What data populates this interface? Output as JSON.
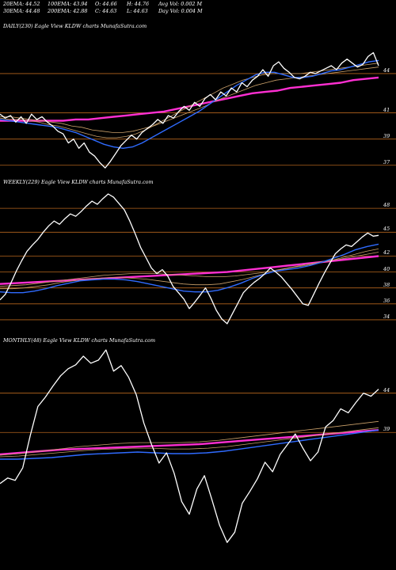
{
  "header": {
    "row1": [
      {
        "key": "ema20",
        "text": "20EMA: 44.52"
      },
      {
        "key": "ema100",
        "text": "100EMA: 43.94"
      },
      {
        "key": "open",
        "text": "O: 44.66"
      },
      {
        "key": "high",
        "text": "H: 44.76"
      },
      {
        "key": "avgvol",
        "text": "Avg Vol: 0.002  M"
      }
    ],
    "row2": [
      {
        "key": "ema30",
        "text": "30EMA: 44.48"
      },
      {
        "key": "ema200",
        "text": "200EMA: 42.88"
      },
      {
        "key": "close",
        "text": "C: 44.63"
      },
      {
        "key": "low",
        "text": "L: 44.63"
      },
      {
        "key": "dayvol",
        "text": "Day Vol: 0.004  M"
      }
    ]
  },
  "colors": {
    "background": "#000000",
    "price": "#ffffff",
    "gridline": "#b5651d",
    "ema_fast": "#2f6bff",
    "ema_slow": "#ff2fd2",
    "ema_mid": "#caa06a"
  },
  "chart_data": [
    {
      "type": "line",
      "title": "DAILY(230) Eagle  View  KLDW charts MunafaSutra.com",
      "yticks": [
        44,
        41,
        39,
        37
      ],
      "ylim": [
        36.2,
        47.2
      ],
      "price": [
        40.9,
        40.6,
        40.8,
        40.3,
        40.7,
        40.2,
        40.9,
        40.5,
        40.7,
        40.3,
        40.0,
        39.6,
        39.4,
        38.7,
        39.0,
        38.3,
        38.7,
        38.0,
        37.7,
        37.2,
        36.8,
        37.3,
        37.9,
        38.5,
        38.9,
        39.3,
        39.0,
        39.5,
        39.8,
        40.1,
        40.5,
        40.2,
        40.8,
        40.6,
        41.1,
        41.5,
        41.2,
        41.8,
        41.5,
        42.1,
        42.4,
        42.0,
        42.6,
        42.3,
        42.9,
        42.6,
        43.3,
        43.0,
        43.5,
        43.8,
        44.3,
        43.8,
        44.6,
        44.9,
        44.4,
        44.1,
        43.7,
        43.6,
        43.8,
        44.1,
        44.0,
        44.2,
        44.4,
        44.6,
        44.3,
        44.8,
        45.1,
        44.8,
        44.5,
        44.7,
        45.3,
        45.6,
        44.6
      ],
      "ema_fast": [
        40.5,
        40.4,
        40.3,
        40.2,
        40.1,
        40.0,
        39.9,
        39.7,
        39.5,
        39.2,
        38.9,
        38.6,
        38.4,
        38.3,
        38.4,
        38.7,
        39.1,
        39.5,
        39.9,
        40.3,
        40.7,
        41.1,
        41.6,
        42.1,
        42.6,
        43.1,
        43.5,
        43.9,
        44.1,
        44.1,
        43.9,
        43.7,
        43.7,
        43.8,
        44.0,
        44.2,
        44.3,
        44.5,
        44.7,
        44.9,
        45.0
      ],
      "ema_mid1": [
        40.6,
        40.5,
        40.5,
        40.4,
        40.3,
        40.1,
        40.0,
        39.8,
        39.6,
        39.4,
        39.2,
        39.1,
        39.1,
        39.2,
        39.4,
        39.7,
        40.1,
        40.5,
        40.9,
        41.3,
        41.7,
        42.1,
        42.5,
        42.9,
        43.2,
        43.5,
        43.7,
        43.9,
        44.0,
        44.0,
        44.0,
        44.0,
        44.1,
        44.2,
        44.3,
        44.4,
        44.5,
        44.6,
        44.7,
        44.8
      ],
      "ema_mid2": [
        40.7,
        40.7,
        40.6,
        40.5,
        40.4,
        40.3,
        40.2,
        40.0,
        39.9,
        39.7,
        39.6,
        39.5,
        39.5,
        39.6,
        39.8,
        40.0,
        40.3,
        40.6,
        40.9,
        41.2,
        41.5,
        41.9,
        42.2,
        42.5,
        42.8,
        43.1,
        43.3,
        43.5,
        43.6,
        43.7,
        43.8,
        43.9,
        44.0,
        44.1,
        44.2,
        44.3,
        44.4,
        44.5
      ],
      "ema_slow": [
        40.4,
        40.4,
        40.4,
        40.4,
        40.4,
        40.4,
        40.5,
        40.5,
        40.6,
        40.7,
        40.8,
        40.9,
        41.0,
        41.1,
        41.3,
        41.5,
        41.7,
        41.9,
        42.1,
        42.3,
        42.5,
        42.6,
        42.7,
        42.9,
        43.0,
        43.1,
        43.2,
        43.3,
        43.5,
        43.6,
        43.7
      ]
    },
    {
      "type": "line",
      "title": "WEEKLY(229) Eagle  View  KLDW charts MunafaSutra.com",
      "yticks": [
        48,
        45,
        42,
        40,
        38,
        36,
        34
      ],
      "ylim": [
        32.6,
        50.6
      ],
      "price": [
        36.5,
        37.2,
        38.6,
        40.1,
        41.4,
        42.6,
        43.4,
        44.1,
        45.0,
        45.8,
        46.4,
        46.0,
        46.7,
        47.3,
        47.0,
        47.6,
        48.3,
        48.9,
        48.5,
        49.2,
        49.8,
        49.4,
        48.6,
        47.8,
        46.4,
        44.8,
        43.1,
        41.8,
        40.5,
        39.8,
        40.3,
        39.5,
        38.2,
        37.4,
        36.6,
        35.4,
        36.2,
        37.1,
        38.0,
        36.7,
        35.2,
        34.1,
        33.5,
        34.8,
        36.1,
        37.4,
        38.1,
        38.7,
        39.2,
        39.8,
        40.5,
        40.0,
        39.4,
        38.6,
        37.8,
        36.9,
        36.0,
        35.8,
        37.2,
        38.6,
        39.9,
        41.1,
        42.3,
        42.9,
        43.4,
        43.2,
        43.8,
        44.4,
        44.9,
        44.5,
        44.6
      ],
      "ema_fast": [
        37.5,
        37.4,
        37.4,
        37.6,
        37.9,
        38.3,
        38.6,
        38.9,
        39.0,
        39.1,
        39.1,
        39.0,
        38.8,
        38.5,
        38.2,
        37.9,
        37.6,
        37.5,
        37.5,
        37.7,
        38.1,
        38.6,
        39.2,
        39.7,
        40.1,
        40.3,
        40.5,
        40.8,
        41.2,
        41.7,
        42.2,
        42.8,
        43.2,
        43.5
      ],
      "ema_mid1": [
        37.9,
        37.9,
        38.0,
        38.2,
        38.4,
        38.7,
        38.9,
        39.1,
        39.2,
        39.3,
        39.3,
        39.2,
        39.1,
        38.9,
        38.7,
        38.5,
        38.4,
        38.4,
        38.5,
        38.8,
        39.1,
        39.5,
        39.9,
        40.3,
        40.6,
        40.8,
        41.1,
        41.4,
        41.8,
        42.2,
        42.6,
        42.9
      ],
      "ema_mid2": [
        38.2,
        38.3,
        38.4,
        38.6,
        38.8,
        39.0,
        39.2,
        39.4,
        39.6,
        39.7,
        39.8,
        39.8,
        39.8,
        39.7,
        39.6,
        39.5,
        39.4,
        39.4,
        39.5,
        39.7,
        39.9,
        40.2,
        40.5,
        40.8,
        41.1,
        41.4,
        41.6,
        41.9,
        42.2,
        42.5
      ],
      "ema_slow": [
        38.5,
        38.6,
        38.7,
        38.8,
        38.9,
        39.0,
        39.1,
        39.2,
        39.3,
        39.4,
        39.5,
        39.6,
        39.7,
        39.8,
        39.9,
        40.0,
        40.2,
        40.4,
        40.6,
        40.8,
        41.0,
        41.2,
        41.4,
        41.6,
        41.8,
        42.0
      ]
    },
    {
      "type": "line",
      "title": "MONTHLY(48) Eagle  View  KLDW charts MunafaSutra.com",
      "yticks": [
        44,
        39
      ],
      "ylim": [
        22.0,
        50.0
      ],
      "price": [
        32.5,
        33.2,
        32.9,
        34.5,
        38.6,
        42.3,
        43.5,
        44.9,
        46.2,
        47.1,
        47.6,
        48.7,
        47.8,
        48.2,
        49.5,
        46.8,
        47.5,
        46.0,
        43.8,
        40.2,
        37.5,
        35.1,
        36.4,
        33.8,
        30.2,
        28.6,
        31.8,
        33.5,
        30.4,
        27.2,
        25.0,
        26.3,
        30.0,
        31.5,
        33.1,
        35.2,
        34.0,
        36.2,
        37.5,
        38.8,
        37.0,
        35.4,
        36.5,
        39.7,
        40.5,
        42.0,
        41.5,
        42.8,
        44.0,
        43.6,
        44.5
      ],
      "ema_fast": [
        35.6,
        35.6,
        35.7,
        35.8,
        36.0,
        36.2,
        36.3,
        36.4,
        36.5,
        36.4,
        36.3,
        36.3,
        36.4,
        36.6,
        36.9,
        37.2,
        37.5,
        37.8,
        38.1,
        38.4,
        38.7,
        39.0,
        39.3
      ],
      "ema_mid1": [
        35.9,
        36.0,
        36.2,
        36.4,
        36.6,
        36.8,
        36.9,
        37.0,
        37.0,
        36.9,
        36.9,
        37.0,
        37.2,
        37.5,
        37.8,
        38.1,
        38.4,
        38.7,
        39.0,
        39.3,
        39.6
      ],
      "ema_mid2": [
        36.1,
        36.3,
        36.6,
        36.9,
        37.2,
        37.4,
        37.6,
        37.7,
        37.7,
        37.7,
        37.8,
        38.0,
        38.3,
        38.6,
        38.9,
        39.2,
        39.5,
        39.8,
        40.1,
        40.4
      ],
      "ema_slow": [
        36.2,
        36.4,
        36.6,
        36.8,
        36.9,
        37.0,
        37.1,
        37.2,
        37.3,
        37.4,
        37.5,
        37.7,
        37.9,
        38.1,
        38.3,
        38.5,
        38.7,
        38.9,
        39.1,
        39.3
      ]
    }
  ]
}
